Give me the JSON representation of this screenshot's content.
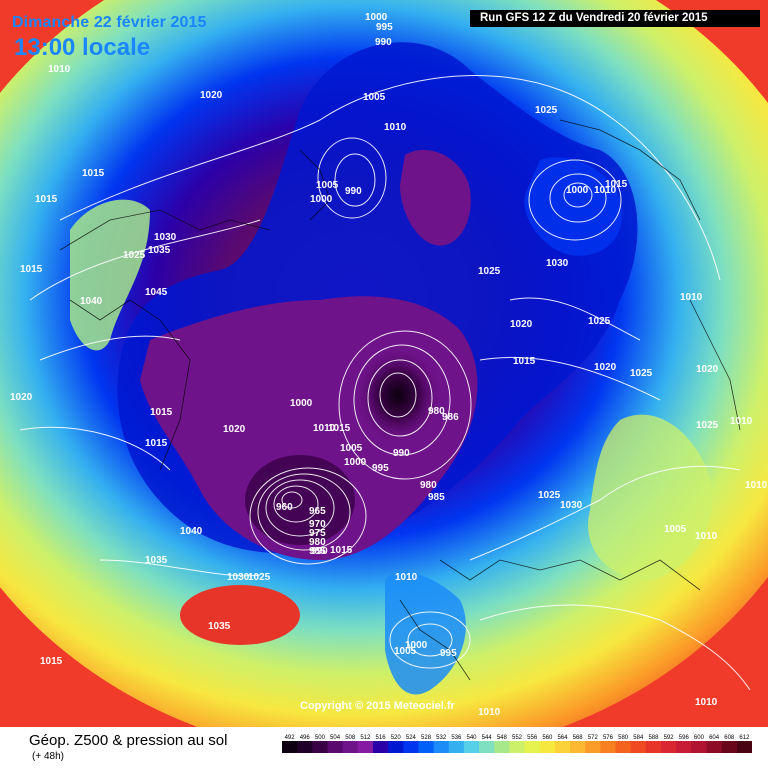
{
  "header": {
    "date": "Dimanche 22 février 2015",
    "time": "13:00 locale",
    "run": "Run GFS 12 Z du Vendredi 20 février 2015"
  },
  "footer": {
    "copyright": "Copyright © 2015 Meteociel.fr",
    "title": "Géop. Z500 & pression au sol",
    "subtitle": "(+ 48h)"
  },
  "colors": {
    "ocean_bg": "#f03a2a",
    "low_center": "#111111",
    "deep_purple": "#6b1379",
    "blue": "#0a2de0"
  },
  "legend": {
    "values": [
      "492",
      "496",
      "500",
      "504",
      "508",
      "512",
      "516",
      "520",
      "524",
      "528",
      "532",
      "536",
      "540",
      "544",
      "548",
      "552",
      "556",
      "560",
      "564",
      "568",
      "572",
      "576",
      "580",
      "584",
      "588",
      "592",
      "596",
      "600",
      "604",
      "608",
      "612"
    ],
    "colors": [
      "#0d0010",
      "#1e0028",
      "#3a0046",
      "#5a0a6e",
      "#6f138a",
      "#861aa3",
      "#2c00a8",
      "#0018d0",
      "#0035f0",
      "#0060f8",
      "#1b8cf8",
      "#34b0f0",
      "#56d0e8",
      "#7ee0c0",
      "#a7e88a",
      "#cdf06a",
      "#e6f24e",
      "#f7e840",
      "#fbd23a",
      "#fcb830",
      "#fb9c28",
      "#f88020",
      "#f4621e",
      "#ef4a22",
      "#e8352a",
      "#d92630",
      "#c81c36",
      "#b01430",
      "#8e0c26",
      "#6a061a",
      "#480210"
    ]
  },
  "pressure_labels": [
    {
      "text": "1000"
    },
    {
      "text": "995"
    },
    {
      "text": "990"
    },
    {
      "text": "1010"
    },
    {
      "text": "1020"
    },
    {
      "text": "1025"
    },
    {
      "text": "1005"
    },
    {
      "text": "1010"
    },
    {
      "text": "1015"
    },
    {
      "text": "1015"
    },
    {
      "text": "1005"
    },
    {
      "text": "990"
    },
    {
      "text": "1000"
    },
    {
      "text": "1030"
    },
    {
      "text": "1035"
    },
    {
      "text": "1025"
    },
    {
      "text": "1045"
    },
    {
      "text": "1040"
    },
    {
      "text": "1015"
    },
    {
      "text": "1000"
    },
    {
      "text": "1010"
    },
    {
      "text": "1015"
    },
    {
      "text": "1025"
    },
    {
      "text": "1030"
    },
    {
      "text": "1020"
    },
    {
      "text": "1025"
    },
    {
      "text": "1010"
    },
    {
      "text": "1015"
    },
    {
      "text": "1020"
    },
    {
      "text": "1025"
    },
    {
      "text": "1020"
    },
    {
      "text": "1010"
    },
    {
      "text": "1025"
    },
    {
      "text": "1020"
    },
    {
      "text": "1015"
    },
    {
      "text": "1020"
    },
    {
      "text": "1015"
    },
    {
      "text": "1000"
    },
    {
      "text": "1010"
    },
    {
      "text": "1015"
    },
    {
      "text": "1005"
    },
    {
      "text": "1000"
    },
    {
      "text": "995"
    },
    {
      "text": "990"
    },
    {
      "text": "980"
    },
    {
      "text": "986"
    },
    {
      "text": "980"
    },
    {
      "text": "985"
    },
    {
      "text": "960"
    },
    {
      "text": "965"
    },
    {
      "text": "970"
    },
    {
      "text": "975"
    },
    {
      "text": "980"
    },
    {
      "text": "985"
    },
    {
      "text": "990"
    },
    {
      "text": "1040"
    },
    {
      "text": "1035"
    },
    {
      "text": "1030"
    },
    {
      "text": "1025"
    },
    {
      "text": "1010"
    },
    {
      "text": "1025"
    },
    {
      "text": "1030"
    },
    {
      "text": "1005"
    },
    {
      "text": "1010"
    },
    {
      "text": "1010"
    },
    {
      "text": "1035"
    },
    {
      "text": "1015"
    },
    {
      "text": "1000"
    },
    {
      "text": "1005"
    },
    {
      "text": "995"
    },
    {
      "text": "1010"
    },
    {
      "text": "1010"
    },
    {
      "text": "1015"
    }
  ]
}
